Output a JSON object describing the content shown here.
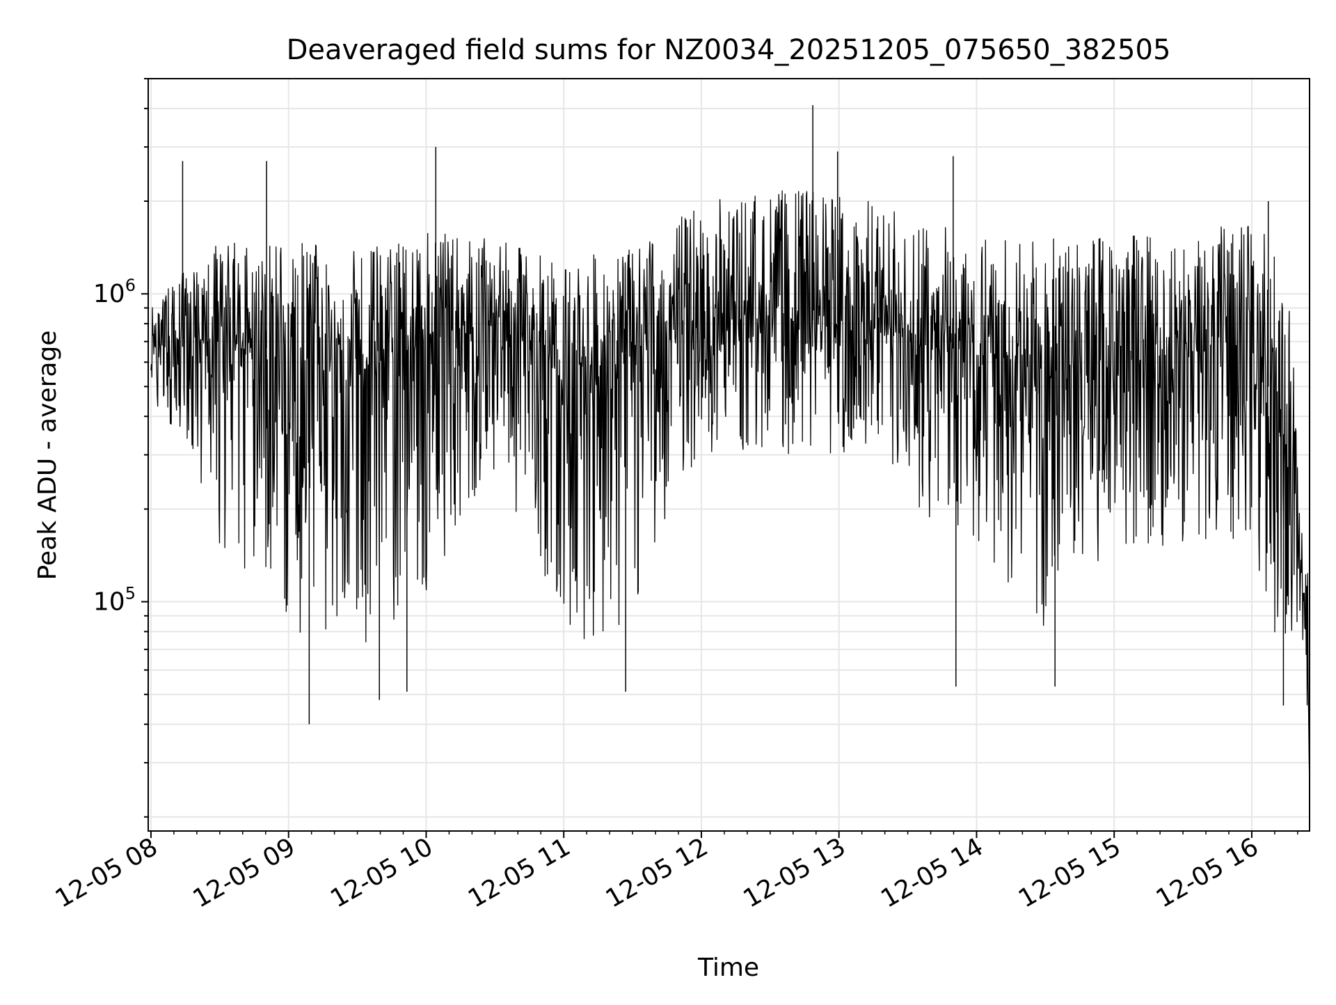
{
  "chart_data": {
    "type": "line",
    "title": "Deaveraged field sums for NZ0034_20251205_075650_382505",
    "xlabel": "Time",
    "ylabel": "Peak ADU - average",
    "yscale": "log",
    "ylim": [
      18000,
      5000000
    ],
    "xlim_hours": [
      7.98,
      16.42
    ],
    "grid": true,
    "line_color": "#000000",
    "grid_color": "#e6e6e6",
    "x_ticks": [
      {
        "hour": 8,
        "label": "12-05 08"
      },
      {
        "hour": 9,
        "label": "12-05 09"
      },
      {
        "hour": 10,
        "label": "12-05 10"
      },
      {
        "hour": 11,
        "label": "12-05 11"
      },
      {
        "hour": 12,
        "label": "12-05 12"
      },
      {
        "hour": 13,
        "label": "12-05 13"
      },
      {
        "hour": 14,
        "label": "12-05 14"
      },
      {
        "hour": 15,
        "label": "12-05 15"
      },
      {
        "hour": 16,
        "label": "12-05 16"
      }
    ],
    "y_ticks": [
      {
        "value": 100000,
        "base": "10",
        "exp": "5"
      },
      {
        "value": 1000000,
        "base": "10",
        "exp": "6"
      }
    ],
    "series": [
      {
        "name": "field sums",
        "envelope_hours": [
          8.0,
          8.5,
          9.0,
          9.5,
          10.0,
          10.5,
          11.0,
          11.5,
          12.0,
          12.5,
          13.0,
          13.5,
          14.0,
          14.5,
          15.0,
          15.5,
          16.0,
          16.2,
          16.35,
          16.42
        ],
        "envelope_median": [
          650000,
          700000,
          650000,
          550000,
          700000,
          850000,
          550000,
          650000,
          800000,
          850000,
          800000,
          700000,
          650000,
          550000,
          650000,
          650000,
          650000,
          400000,
          150000,
          25000
        ],
        "envelope_low": [
          450000,
          150000,
          80000,
          70000,
          100000,
          250000,
          70000,
          80000,
          300000,
          300000,
          300000,
          200000,
          150000,
          70000,
          150000,
          150000,
          150000,
          60000,
          90000,
          25000
        ],
        "envelope_high": [
          900000,
          1500000,
          1500000,
          1400000,
          1600000,
          1500000,
          1300000,
          1400000,
          2000000,
          2200000,
          2200000,
          1800000,
          1600000,
          1500000,
          1600000,
          1600000,
          1700000,
          1500000,
          250000,
          100000
        ],
        "spikes": [
          {
            "hour": 8.23,
            "value": 2700000
          },
          {
            "hour": 8.84,
            "value": 2700000
          },
          {
            "hour": 10.07,
            "value": 3000000
          },
          {
            "hour": 12.81,
            "value": 4100000
          },
          {
            "hour": 12.99,
            "value": 2900000
          },
          {
            "hour": 13.83,
            "value": 2800000
          },
          {
            "hour": 16.12,
            "value": 2000000
          },
          {
            "hour": 9.15,
            "value": 40000
          },
          {
            "hour": 9.66,
            "value": 48000
          },
          {
            "hour": 9.86,
            "value": 51000
          },
          {
            "hour": 11.45,
            "value": 51000
          },
          {
            "hour": 13.85,
            "value": 53000
          },
          {
            "hour": 14.57,
            "value": 53000
          },
          {
            "hour": 16.23,
            "value": 46000
          }
        ]
      }
    ]
  }
}
